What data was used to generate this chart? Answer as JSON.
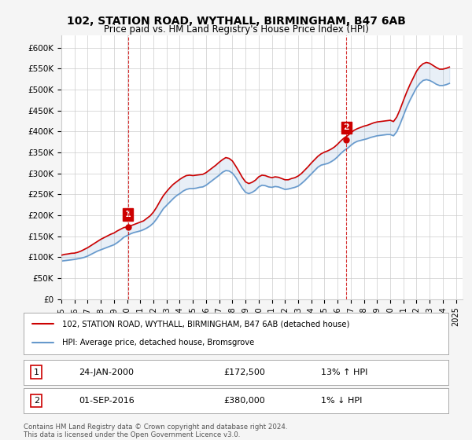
{
  "title": "102, STATION ROAD, WYTHALL, BIRMINGHAM, B47 6AB",
  "subtitle": "Price paid vs. HM Land Registry's House Price Index (HPI)",
  "ylabel": "",
  "xlim_start": 1995.0,
  "xlim_end": 2025.5,
  "ylim": [
    0,
    630000
  ],
  "yticks": [
    0,
    50000,
    100000,
    150000,
    200000,
    250000,
    300000,
    350000,
    400000,
    450000,
    500000,
    550000,
    600000
  ],
  "ytick_labels": [
    "£0",
    "£50K",
    "£100K",
    "£150K",
    "£200K",
    "£250K",
    "£300K",
    "£350K",
    "£400K",
    "£450K",
    "£500K",
    "£550K",
    "£600K"
  ],
  "sale1_x": 2000.07,
  "sale1_y": 172500,
  "sale1_label": "1",
  "sale1_date": "24-JAN-2000",
  "sale1_price": "£172,500",
  "sale1_hpi": "13% ↑ HPI",
  "sale2_x": 2016.67,
  "sale2_y": 380000,
  "sale2_label": "2",
  "sale2_date": "01-SEP-2016",
  "sale2_price": "£380,000",
  "sale2_hpi": "1% ↓ HPI",
  "legend_line1": "102, STATION ROAD, WYTHALL, BIRMINGHAM, B47 6AB (detached house)",
  "legend_line2": "HPI: Average price, detached house, Bromsgrove",
  "footer": "Contains HM Land Registry data © Crown copyright and database right 2024.\nThis data is licensed under the Open Government Licence v3.0.",
  "line_color_red": "#cc0000",
  "line_color_blue": "#6699cc",
  "bg_color": "#f5f5f5",
  "plot_bg": "#ffffff",
  "grid_color": "#cccccc",
  "vline_color": "#cc0000",
  "marker_color_red": "#cc0000",
  "hpi_data_x": [
    1995.0,
    1995.25,
    1995.5,
    1995.75,
    1996.0,
    1996.25,
    1996.5,
    1996.75,
    1997.0,
    1997.25,
    1997.5,
    1997.75,
    1998.0,
    1998.25,
    1998.5,
    1998.75,
    1999.0,
    1999.25,
    1999.5,
    1999.75,
    2000.0,
    2000.25,
    2000.5,
    2000.75,
    2001.0,
    2001.25,
    2001.5,
    2001.75,
    2002.0,
    2002.25,
    2002.5,
    2002.75,
    2003.0,
    2003.25,
    2003.5,
    2003.75,
    2004.0,
    2004.25,
    2004.5,
    2004.75,
    2005.0,
    2005.25,
    2005.5,
    2005.75,
    2006.0,
    2006.25,
    2006.5,
    2006.75,
    2007.0,
    2007.25,
    2007.5,
    2007.75,
    2008.0,
    2008.25,
    2008.5,
    2008.75,
    2009.0,
    2009.25,
    2009.5,
    2009.75,
    2010.0,
    2010.25,
    2010.5,
    2010.75,
    2011.0,
    2011.25,
    2011.5,
    2011.75,
    2012.0,
    2012.25,
    2012.5,
    2012.75,
    2013.0,
    2013.25,
    2013.5,
    2013.75,
    2014.0,
    2014.25,
    2014.5,
    2014.75,
    2015.0,
    2015.25,
    2015.5,
    2015.75,
    2016.0,
    2016.25,
    2016.5,
    2016.75,
    2017.0,
    2017.25,
    2017.5,
    2017.75,
    2018.0,
    2018.25,
    2018.5,
    2018.75,
    2019.0,
    2019.25,
    2019.5,
    2019.75,
    2020.0,
    2020.25,
    2020.5,
    2020.75,
    2021.0,
    2021.25,
    2021.5,
    2021.75,
    2022.0,
    2022.25,
    2022.5,
    2022.75,
    2023.0,
    2023.25,
    2023.5,
    2023.75,
    2024.0,
    2024.25,
    2024.5
  ],
  "hpi_data_y": [
    91000,
    92000,
    93000,
    94000,
    95000,
    96500,
    98000,
    100000,
    103000,
    107000,
    111000,
    115000,
    118000,
    121000,
    124000,
    127000,
    130000,
    135000,
    141000,
    148000,
    152000,
    156000,
    159000,
    161000,
    163000,
    166000,
    170000,
    175000,
    182000,
    192000,
    204000,
    216000,
    224000,
    232000,
    240000,
    247000,
    252000,
    258000,
    262000,
    264000,
    264000,
    265000,
    267000,
    268000,
    272000,
    278000,
    284000,
    290000,
    296000,
    303000,
    307000,
    306000,
    301000,
    291000,
    278000,
    265000,
    255000,
    252000,
    255000,
    260000,
    268000,
    272000,
    271000,
    268000,
    267000,
    269000,
    268000,
    265000,
    262000,
    263000,
    265000,
    267000,
    270000,
    276000,
    283000,
    291000,
    299000,
    307000,
    315000,
    320000,
    322000,
    324000,
    328000,
    333000,
    340000,
    348000,
    355000,
    360000,
    367000,
    373000,
    377000,
    379000,
    381000,
    383000,
    386000,
    388000,
    390000,
    391000,
    392000,
    393000,
    393000,
    390000,
    400000,
    418000,
    438000,
    458000,
    475000,
    490000,
    505000,
    515000,
    522000,
    524000,
    522000,
    518000,
    513000,
    510000,
    510000,
    512000,
    515000
  ],
  "price_data_x": [
    1995.0,
    1995.25,
    1995.5,
    1995.75,
    1996.0,
    1996.25,
    1996.5,
    1996.75,
    1997.0,
    1997.25,
    1997.5,
    1997.75,
    1998.0,
    1998.25,
    1998.5,
    1998.75,
    1999.0,
    1999.25,
    1999.5,
    1999.75,
    2000.0,
    2000.25,
    2000.5,
    2000.75,
    2001.0,
    2001.25,
    2001.5,
    2001.75,
    2002.0,
    2002.25,
    2002.5,
    2002.75,
    2003.0,
    2003.25,
    2003.5,
    2003.75,
    2004.0,
    2004.25,
    2004.5,
    2004.75,
    2005.0,
    2005.25,
    2005.5,
    2005.75,
    2006.0,
    2006.25,
    2006.5,
    2006.75,
    2007.0,
    2007.25,
    2007.5,
    2007.75,
    2008.0,
    2008.25,
    2008.5,
    2008.75,
    2009.0,
    2009.25,
    2009.5,
    2009.75,
    2010.0,
    2010.25,
    2010.5,
    2010.75,
    2011.0,
    2011.25,
    2011.5,
    2011.75,
    2012.0,
    2012.25,
    2012.5,
    2012.75,
    2013.0,
    2013.25,
    2013.5,
    2013.75,
    2014.0,
    2014.25,
    2014.5,
    2014.75,
    2015.0,
    2015.25,
    2015.5,
    2015.75,
    2016.0,
    2016.25,
    2016.5,
    2016.75,
    2017.0,
    2017.25,
    2017.5,
    2017.75,
    2018.0,
    2018.25,
    2018.5,
    2018.75,
    2019.0,
    2019.25,
    2019.5,
    2019.75,
    2020.0,
    2020.25,
    2020.5,
    2020.75,
    2021.0,
    2021.25,
    2021.5,
    2021.75,
    2022.0,
    2022.25,
    2022.5,
    2022.75,
    2023.0,
    2023.25,
    2023.5,
    2023.75,
    2024.0,
    2024.25,
    2024.5
  ],
  "price_data_y": [
    105000,
    107000,
    108000,
    109500,
    110000,
    112000,
    115000,
    119000,
    123000,
    128000,
    133000,
    138000,
    143000,
    147000,
    151000,
    155000,
    158000,
    163000,
    167000,
    171000,
    172500,
    175000,
    178000,
    181000,
    184000,
    187000,
    193000,
    199000,
    208000,
    220000,
    234000,
    247000,
    257000,
    266000,
    274000,
    280000,
    286000,
    291000,
    295000,
    296000,
    295000,
    296000,
    297000,
    298000,
    302000,
    308000,
    314000,
    320000,
    327000,
    333000,
    338000,
    336000,
    330000,
    318000,
    305000,
    291000,
    280000,
    276000,
    279000,
    284000,
    292000,
    296000,
    295000,
    292000,
    290000,
    292000,
    291000,
    288000,
    285000,
    285000,
    288000,
    290000,
    294000,
    300000,
    308000,
    316000,
    325000,
    333000,
    341000,
    347000,
    351000,
    354000,
    358000,
    363000,
    370000,
    378000,
    385000,
    390000,
    397000,
    403000,
    407000,
    410000,
    413000,
    415000,
    418000,
    421000,
    423000,
    424000,
    425000,
    426000,
    427000,
    424000,
    435000,
    453000,
    474000,
    494000,
    512000,
    528000,
    544000,
    555000,
    562000,
    565000,
    563000,
    558000,
    553000,
    549000,
    549000,
    551000,
    554000
  ]
}
